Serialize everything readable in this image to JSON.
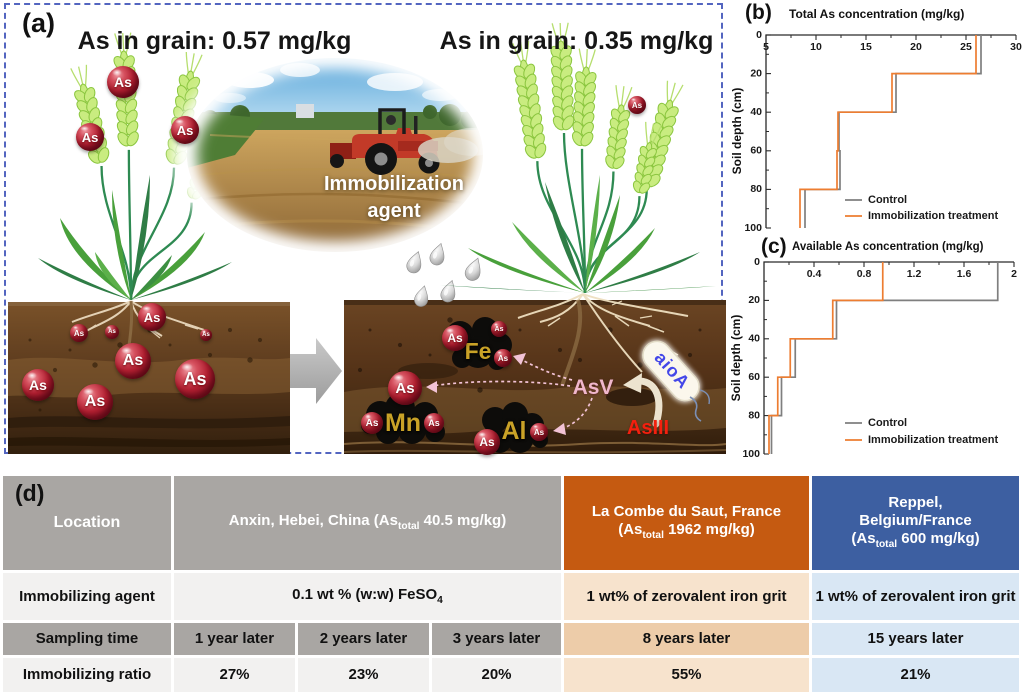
{
  "figure": {
    "panel_a_label": "(a)",
    "panel_d_label": "(d)"
  },
  "panel_a": {
    "left_caption": "As in grain: 0.57 mg/kg",
    "right_caption": "As in grain: 0.35 mg/kg",
    "ellipse_label_line1": "Immobilization",
    "ellipse_label_line2": "agent",
    "sphere_label": "As",
    "mineral_fe": "Fe",
    "mineral_mn": "Mn",
    "mineral_al": "Al",
    "arsenate_label": "AsV",
    "arsenite_label": "AsIII",
    "enzyme_label": "aioA"
  },
  "chart_data": [
    {
      "type": "line",
      "panel_label": "(b)",
      "title": "Total As concentration (mg/kg)",
      "ylabel": "Soil depth (cm)",
      "x_range": [
        5,
        30
      ],
      "x_ticks": [
        5,
        10,
        15,
        20,
        25,
        30
      ],
      "depth_range": [
        0,
        100
      ],
      "depth_ticks": [
        0,
        20,
        40,
        60,
        80,
        100
      ],
      "layer_boundaries": [
        0,
        20,
        40,
        60,
        80,
        100
      ],
      "legend_position": "inside lower-right",
      "grid": false,
      "series": [
        {
          "name": "Control",
          "color": "#7f7f7f",
          "values_by_layer": [
            26.5,
            18.0,
            12.3,
            12.4,
            8.9
          ]
        },
        {
          "name": "Immobilization treatment",
          "color": "#ed7d31",
          "values_by_layer": [
            26.0,
            17.6,
            12.2,
            12.1,
            8.4
          ]
        }
      ]
    },
    {
      "type": "line",
      "panel_label": "(c)",
      "title": "Available As concentration (mg/kg)",
      "ylabel": "Soil depth (cm)",
      "x_range": [
        0,
        2.0
      ],
      "x_ticks": [
        0.4,
        0.8,
        1.2,
        1.6,
        2.0
      ],
      "depth_range": [
        0,
        100
      ],
      "depth_ticks": [
        0,
        20,
        40,
        60,
        80,
        100
      ],
      "layer_boundaries": [
        0,
        20,
        40,
        60,
        80,
        100
      ],
      "legend_position": "inside lower-right",
      "grid": false,
      "series": [
        {
          "name": "Control",
          "color": "#7f7f7f",
          "values_by_layer": [
            1.87,
            0.58,
            0.25,
            0.14,
            0.06
          ]
        },
        {
          "name": "Immobilization treatment",
          "color": "#ed7d31",
          "values_by_layer": [
            0.95,
            0.55,
            0.21,
            0.11,
            0.04
          ]
        }
      ]
    }
  ],
  "table": {
    "row_headers": [
      "Location",
      "Immobilizing agent",
      "Sampling time",
      "Immobilizing ratio"
    ],
    "china": {
      "location_pre": "Anxin, Hebei, China (As",
      "location_sub": "total",
      "location_post": " 40.5 mg/kg)",
      "agent_pre": "0.1 wt % (w:w) FeSO",
      "agent_sub": "4",
      "sampling": [
        "1 year later",
        "2 years later",
        "3 years later"
      ],
      "ratios": [
        "27%",
        "23%",
        "20%"
      ]
    },
    "france": {
      "location_line1": "La Combe du Saut, France",
      "location_pre": "(As",
      "location_sub": "total",
      "location_post": " 1962 mg/kg)",
      "agent": "1 wt% of zerovalent iron grit",
      "sampling": "8 years later",
      "ratio": "55%"
    },
    "belgium": {
      "location_line1": "Reppel,",
      "location_line2": "Belgium/France",
      "location_pre": "(As",
      "location_sub": "total",
      "location_post": " 600 mg/kg)",
      "agent": "1 wt% of zerovalent iron grit",
      "sampling": "15 years later",
      "ratio": "21%"
    },
    "colors": {
      "header_gray": "#a9a6a3",
      "row_light": "#f2f1f0",
      "france_header": "#c55a11",
      "france_light": "#f7e3cd",
      "france_medium": "#edcca9",
      "belgium_header": "#3d5fa1",
      "belgium_light": "#d9e7f4"
    }
  }
}
